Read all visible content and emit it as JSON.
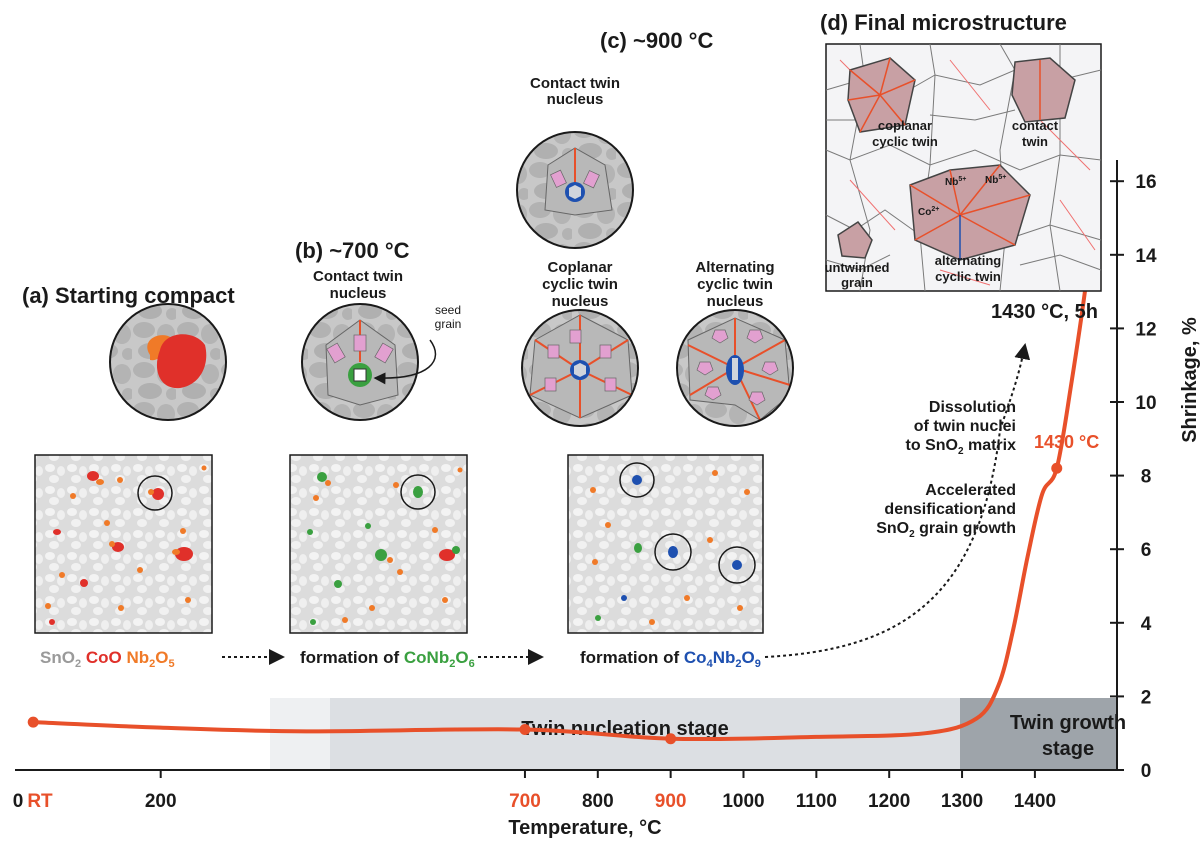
{
  "panels": {
    "a": {
      "title": "(a) Starting compact"
    },
    "b": {
      "title": "(b) ~700 °C",
      "nucleus_label": [
        "Contact twin",
        "nucleus"
      ],
      "seed_label": [
        "seed",
        "grain"
      ]
    },
    "c": {
      "title": "(c) ~900 °C",
      "contact_label": [
        "Contact twin",
        "nucleus"
      ],
      "coplanar_label": [
        "Coplanar",
        "cyclic twin",
        "nucleus"
      ],
      "alternating_label": [
        "Alternating",
        "cyclic twin",
        "nucleus"
      ]
    },
    "d": {
      "title": "(d) Final microstructure",
      "coplanar_label": [
        "coplanar",
        "cyclic twin"
      ],
      "contact_label": [
        "contact",
        "twin"
      ],
      "untwinned_label": [
        "untwinned",
        "grain"
      ],
      "alternating_label": [
        "alternating",
        "cyclic twin"
      ],
      "ion_co": "Co",
      "ion_co_charge": "2+",
      "ion_nb": "Nb",
      "ion_nb_charge": "5+",
      "condition": "1430 °C, 5h"
    }
  },
  "legend": {
    "sno2": "SnO",
    "sno2_sub": "2",
    "coo": "CoO",
    "nb2o5_a": "Nb",
    "nb2o5_sub1": "2",
    "nb2o5_b": "O",
    "nb2o5_sub2": "5"
  },
  "formation": {
    "b_prefix": "formation of ",
    "b_a": "CoNb",
    "b_sub1": "2",
    "b_b": "O",
    "b_sub2": "6",
    "c_prefix": "formation of ",
    "c_a": "Co",
    "c_sub1": "4",
    "c_b": "Nb",
    "c_sub2": "2",
    "c_c": "O",
    "c_sub3": "9"
  },
  "annotations": {
    "dissolution": [
      "Dissolution",
      "of twin nuclei"
    ],
    "dissolution_line3_a": "to SnO",
    "dissolution_line3_sub": "2",
    "dissolution_line3_b": " matrix",
    "accelerated": [
      "Accelerated",
      "densification and"
    ],
    "accelerated_line3_a": "SnO",
    "accelerated_line3_sub": "2",
    "accelerated_line3_b": " grain growth",
    "marker_1430": "1430 °C"
  },
  "stages": {
    "nucleation": "Twin nucleation stage",
    "growth": [
      "Twin growth",
      "stage"
    ]
  },
  "axes": {
    "xlabel": "Temperature, °C",
    "ylabel": "Shrinkage, %",
    "xticks": [
      {
        "label": "0",
        "value": 0,
        "color": "#1a1a1a"
      },
      {
        "label": "RT",
        "value": 25,
        "color": "#e8502a"
      },
      {
        "label": "200",
        "value": 200,
        "color": "#1a1a1a"
      },
      {
        "label": "700",
        "value": 700,
        "color": "#e8502a"
      },
      {
        "label": "800",
        "value": 800,
        "color": "#1a1a1a"
      },
      {
        "label": "900",
        "value": 900,
        "color": "#e8502a"
      },
      {
        "label": "1000",
        "value": 1000,
        "color": "#1a1a1a"
      },
      {
        "label": "1100",
        "value": 1100,
        "color": "#1a1a1a"
      },
      {
        "label": "1200",
        "value": 1200,
        "color": "#1a1a1a"
      },
      {
        "label": "1300",
        "value": 1300,
        "color": "#1a1a1a"
      },
      {
        "label": "1400",
        "value": 1400,
        "color": "#1a1a1a"
      }
    ],
    "yticks": [
      0,
      2,
      4,
      6,
      8,
      10,
      12,
      14,
      16
    ]
  },
  "curve": {
    "color": "#e8502a",
    "points": [
      [
        25,
        1.3
      ],
      [
        200,
        1.15
      ],
      [
        400,
        1.05
      ],
      [
        700,
        1.1
      ],
      [
        900,
        0.85
      ],
      [
        1100,
        0.9
      ],
      [
        1250,
        1.0
      ],
      [
        1320,
        1.4
      ],
      [
        1350,
        2.3
      ],
      [
        1370,
        3.8
      ],
      [
        1390,
        5.8
      ],
      [
        1410,
        7.5
      ],
      [
        1430,
        8.2
      ],
      [
        1450,
        10.5
      ],
      [
        1470,
        13.2
      ],
      [
        1480,
        15.0
      ]
    ],
    "markers": [
      [
        25,
        1.3
      ],
      [
        700,
        1.1
      ],
      [
        900,
        0.85
      ],
      [
        1430,
        8.2
      ]
    ]
  },
  "colors": {
    "sno2": "#9a9a9a",
    "coo": "#e0302a",
    "nb2o5": "#f07a28",
    "conb2o6": "#3aa040",
    "co4nb2o9": "#1e50b0",
    "accent": "#e8502a"
  }
}
